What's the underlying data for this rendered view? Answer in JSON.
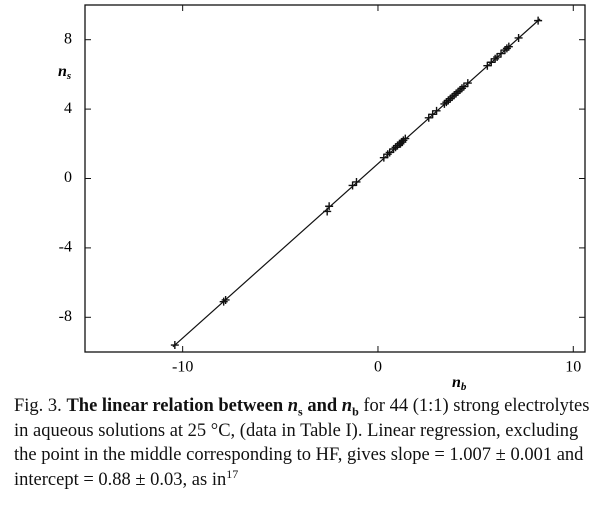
{
  "chart_data": {
    "type": "scatter",
    "xlabel": {
      "text": "n",
      "sub": "b"
    },
    "ylabel": {
      "text": "n",
      "sub": "s"
    },
    "xlim": [
      -15,
      10.6
    ],
    "ylim": [
      -10,
      10
    ],
    "xticks": [
      -10,
      0,
      10
    ],
    "yticks": [
      -8,
      -4,
      0,
      4,
      8
    ],
    "color": "#111",
    "x": [
      -10.4,
      -7.9,
      -7.8,
      -2.5,
      -2.6,
      -1.3,
      -1.1,
      0.3,
      0.5,
      0.6,
      0.8,
      0.9,
      1.0,
      1.1,
      1.15,
      1.2,
      1.25,
      1.3,
      1.4,
      2.6,
      2.8,
      3.0,
      3.4,
      3.5,
      3.6,
      3.7,
      3.8,
      3.9,
      4.0,
      4.1,
      4.2,
      4.3,
      4.4,
      4.6,
      5.6,
      5.8,
      6.0,
      6.1,
      6.3,
      6.5,
      6.6,
      6.7,
      7.2,
      8.2
    ],
    "y": [
      -9.6,
      -7.1,
      -7.0,
      -1.6,
      -1.9,
      -0.4,
      -0.2,
      1.2,
      1.4,
      1.5,
      1.7,
      1.8,
      1.9,
      2.0,
      2.0,
      2.1,
      2.1,
      2.2,
      2.3,
      3.5,
      3.7,
      3.9,
      4.3,
      4.4,
      4.5,
      4.6,
      4.7,
      4.8,
      4.9,
      5.0,
      5.1,
      5.2,
      5.3,
      5.5,
      6.5,
      6.7,
      6.9,
      7.0,
      7.2,
      7.4,
      7.5,
      7.6,
      8.1,
      9.1
    ],
    "regression_line": {
      "x": [
        -10.5,
        8.3
      ],
      "y": [
        -9.7,
        9.2
      ]
    },
    "caption": [
      "Fig. 3. ",
      "The linear relation between ",
      "n",
      "s",
      " and ",
      "n",
      "b",
      " for 44 (1:1) strong electrolytes in aqueous solutions at 25 °C, (data in Table I). Linear regression, excluding the point in the middle corresponding to HF, gives slope = 1.007 ± 0.001 and intercept = 0.88 ± 0.03, as in",
      "17"
    ]
  }
}
